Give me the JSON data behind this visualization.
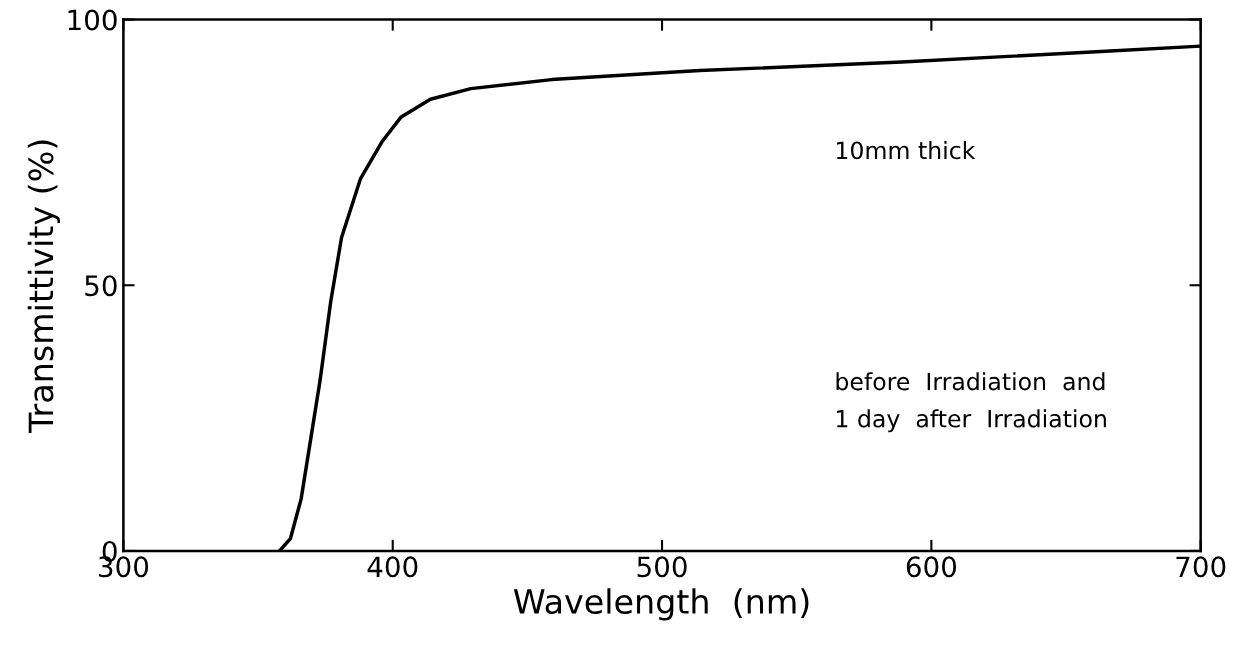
{
  "chart_data": {
    "type": "line",
    "xlabel": "Wavelength  (nm)",
    "ylabel": "Transmittivity (%)",
    "xlim": [
      300,
      700
    ],
    "xticks": [
      300,
      400,
      500,
      600,
      700
    ],
    "ylim": [
      0,
      100
    ],
    "yticks": [
      0,
      50,
      100
    ],
    "grid": false,
    "legend": false,
    "series": [
      {
        "color": "#000000",
        "x": [
          358,
          362,
          366,
          373,
          377,
          381,
          388,
          396,
          403,
          414,
          429,
          459,
          514,
          589,
          663,
          700
        ],
        "values": [
          0,
          2.3,
          9.8,
          32,
          47,
          59,
          70,
          77,
          81.6,
          85,
          87,
          88.7,
          90.4,
          92,
          94,
          95
        ]
      }
    ],
    "annotations": [
      "10mm thick",
      "before  Irradiation  and\n1 day  after  Irradiation"
    ]
  }
}
